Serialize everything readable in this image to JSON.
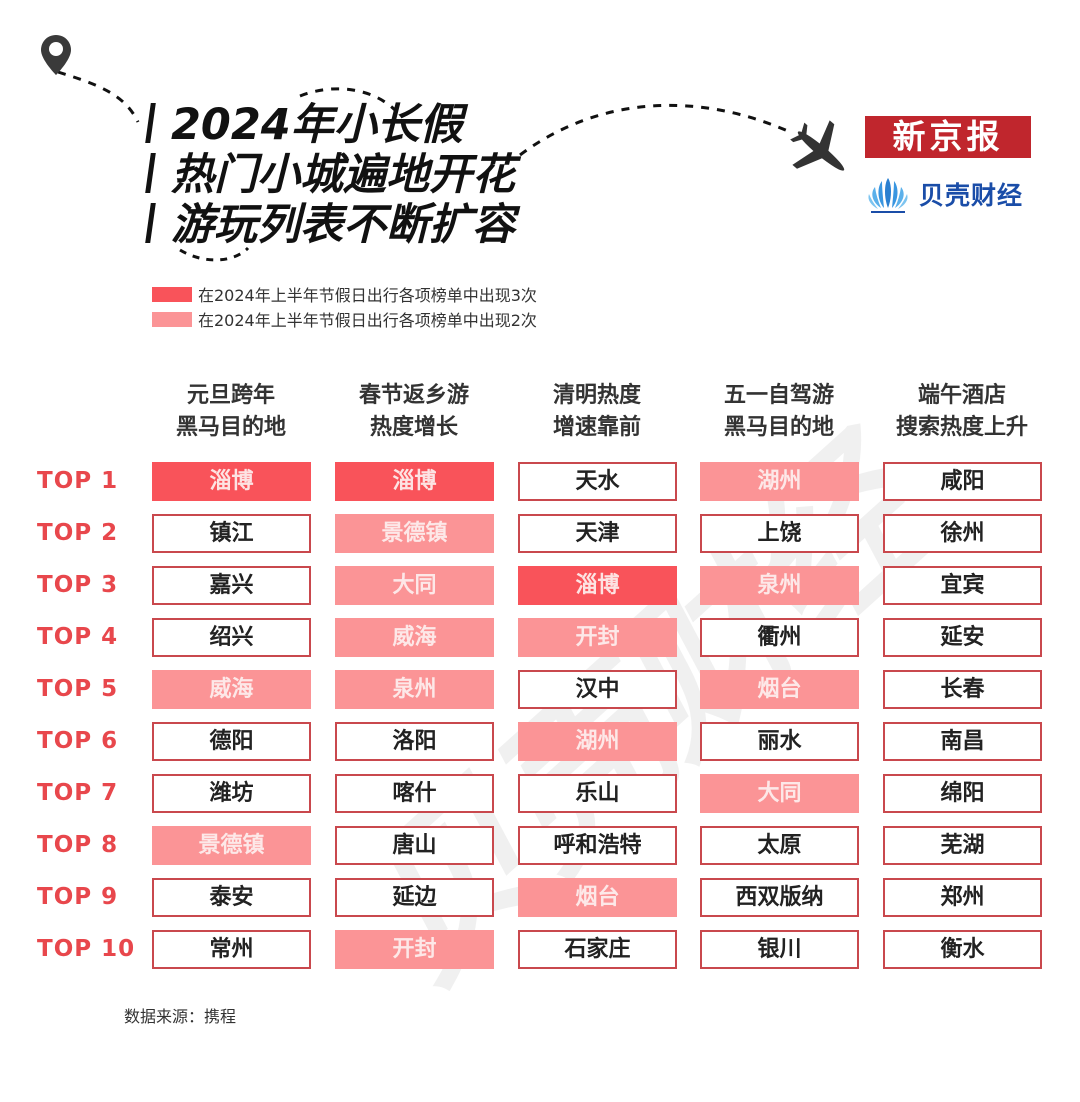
{
  "title": {
    "lines": [
      "2024年小长假",
      "热门小城遍地开花",
      "游玩列表不断扩容"
    ]
  },
  "logos": {
    "newspaper": "新京报",
    "finance": "贝壳财经"
  },
  "icons": {
    "pin": "location-pin-icon",
    "plane": "airplane-icon",
    "shell": "shell-logo-icon"
  },
  "colors": {
    "three_times": "#f9535a",
    "two_times": "#fb9496",
    "plain_border": "#c9484d",
    "rank_text": "#e8474c",
    "newspaper_bg": "#c0262d",
    "finance_text": "#1a4da8"
  },
  "legend": [
    {
      "label": "在2024年上半年节假日出行各项榜单中出现3次",
      "color": "#f9535a"
    },
    {
      "label": "在2024年上半年节假日出行各项榜单中出现2次",
      "color": "#fb9496"
    }
  ],
  "columns": [
    {
      "line1": "元旦跨年",
      "line2": "黑马目的地"
    },
    {
      "line1": "春节返乡游",
      "line2": "热度增长"
    },
    {
      "line1": "清明热度",
      "line2": "增速靠前"
    },
    {
      "line1": "五一自驾游",
      "line2": "黑马目的地"
    },
    {
      "line1": "端午酒店",
      "line2": "搜索热度上升"
    }
  ],
  "ranks": [
    "TOP 1",
    "TOP 2",
    "TOP 3",
    "TOP 4",
    "TOP 5",
    "TOP 6",
    "TOP 7",
    "TOP 8",
    "TOP 9",
    "TOP 10"
  ],
  "table": [
    [
      {
        "city": "淄博",
        "hl": "three"
      },
      {
        "city": "淄博",
        "hl": "three"
      },
      {
        "city": "天水",
        "hl": "plain"
      },
      {
        "city": "湖州",
        "hl": "two"
      },
      {
        "city": "咸阳",
        "hl": "plain"
      }
    ],
    [
      {
        "city": "镇江",
        "hl": "plain"
      },
      {
        "city": "景德镇",
        "hl": "two"
      },
      {
        "city": "天津",
        "hl": "plain"
      },
      {
        "city": "上饶",
        "hl": "plain"
      },
      {
        "city": "徐州",
        "hl": "plain"
      }
    ],
    [
      {
        "city": "嘉兴",
        "hl": "plain"
      },
      {
        "city": "大同",
        "hl": "two"
      },
      {
        "city": "淄博",
        "hl": "three"
      },
      {
        "city": "泉州",
        "hl": "two"
      },
      {
        "city": "宜宾",
        "hl": "plain"
      }
    ],
    [
      {
        "city": "绍兴",
        "hl": "plain"
      },
      {
        "city": "威海",
        "hl": "two"
      },
      {
        "city": "开封",
        "hl": "two"
      },
      {
        "city": "衢州",
        "hl": "plain"
      },
      {
        "city": "延安",
        "hl": "plain"
      }
    ],
    [
      {
        "city": "威海",
        "hl": "two"
      },
      {
        "city": "泉州",
        "hl": "two"
      },
      {
        "city": "汉中",
        "hl": "plain"
      },
      {
        "city": "烟台",
        "hl": "two"
      },
      {
        "city": "长春",
        "hl": "plain"
      }
    ],
    [
      {
        "city": "德阳",
        "hl": "plain"
      },
      {
        "city": "洛阳",
        "hl": "plain"
      },
      {
        "city": "湖州",
        "hl": "two"
      },
      {
        "city": "丽水",
        "hl": "plain"
      },
      {
        "city": "南昌",
        "hl": "plain"
      }
    ],
    [
      {
        "city": "潍坊",
        "hl": "plain"
      },
      {
        "city": "喀什",
        "hl": "plain"
      },
      {
        "city": "乐山",
        "hl": "plain"
      },
      {
        "city": "大同",
        "hl": "two"
      },
      {
        "city": "绵阳",
        "hl": "plain"
      }
    ],
    [
      {
        "city": "景德镇",
        "hl": "two"
      },
      {
        "city": "唐山",
        "hl": "plain"
      },
      {
        "city": "呼和浩特",
        "hl": "plain"
      },
      {
        "city": "太原",
        "hl": "plain"
      },
      {
        "city": "芜湖",
        "hl": "plain"
      }
    ],
    [
      {
        "city": "泰安",
        "hl": "plain"
      },
      {
        "city": "延边",
        "hl": "plain"
      },
      {
        "city": "烟台",
        "hl": "two"
      },
      {
        "city": "西双版纳",
        "hl": "plain"
      },
      {
        "city": "郑州",
        "hl": "plain"
      }
    ],
    [
      {
        "city": "常州",
        "hl": "plain"
      },
      {
        "city": "开封",
        "hl": "two"
      },
      {
        "city": "石家庄",
        "hl": "plain"
      },
      {
        "city": "银川",
        "hl": "plain"
      },
      {
        "city": "衡水",
        "hl": "plain"
      }
    ]
  ],
  "watermark": "贝壳财经",
  "source": "数据来源：携程"
}
